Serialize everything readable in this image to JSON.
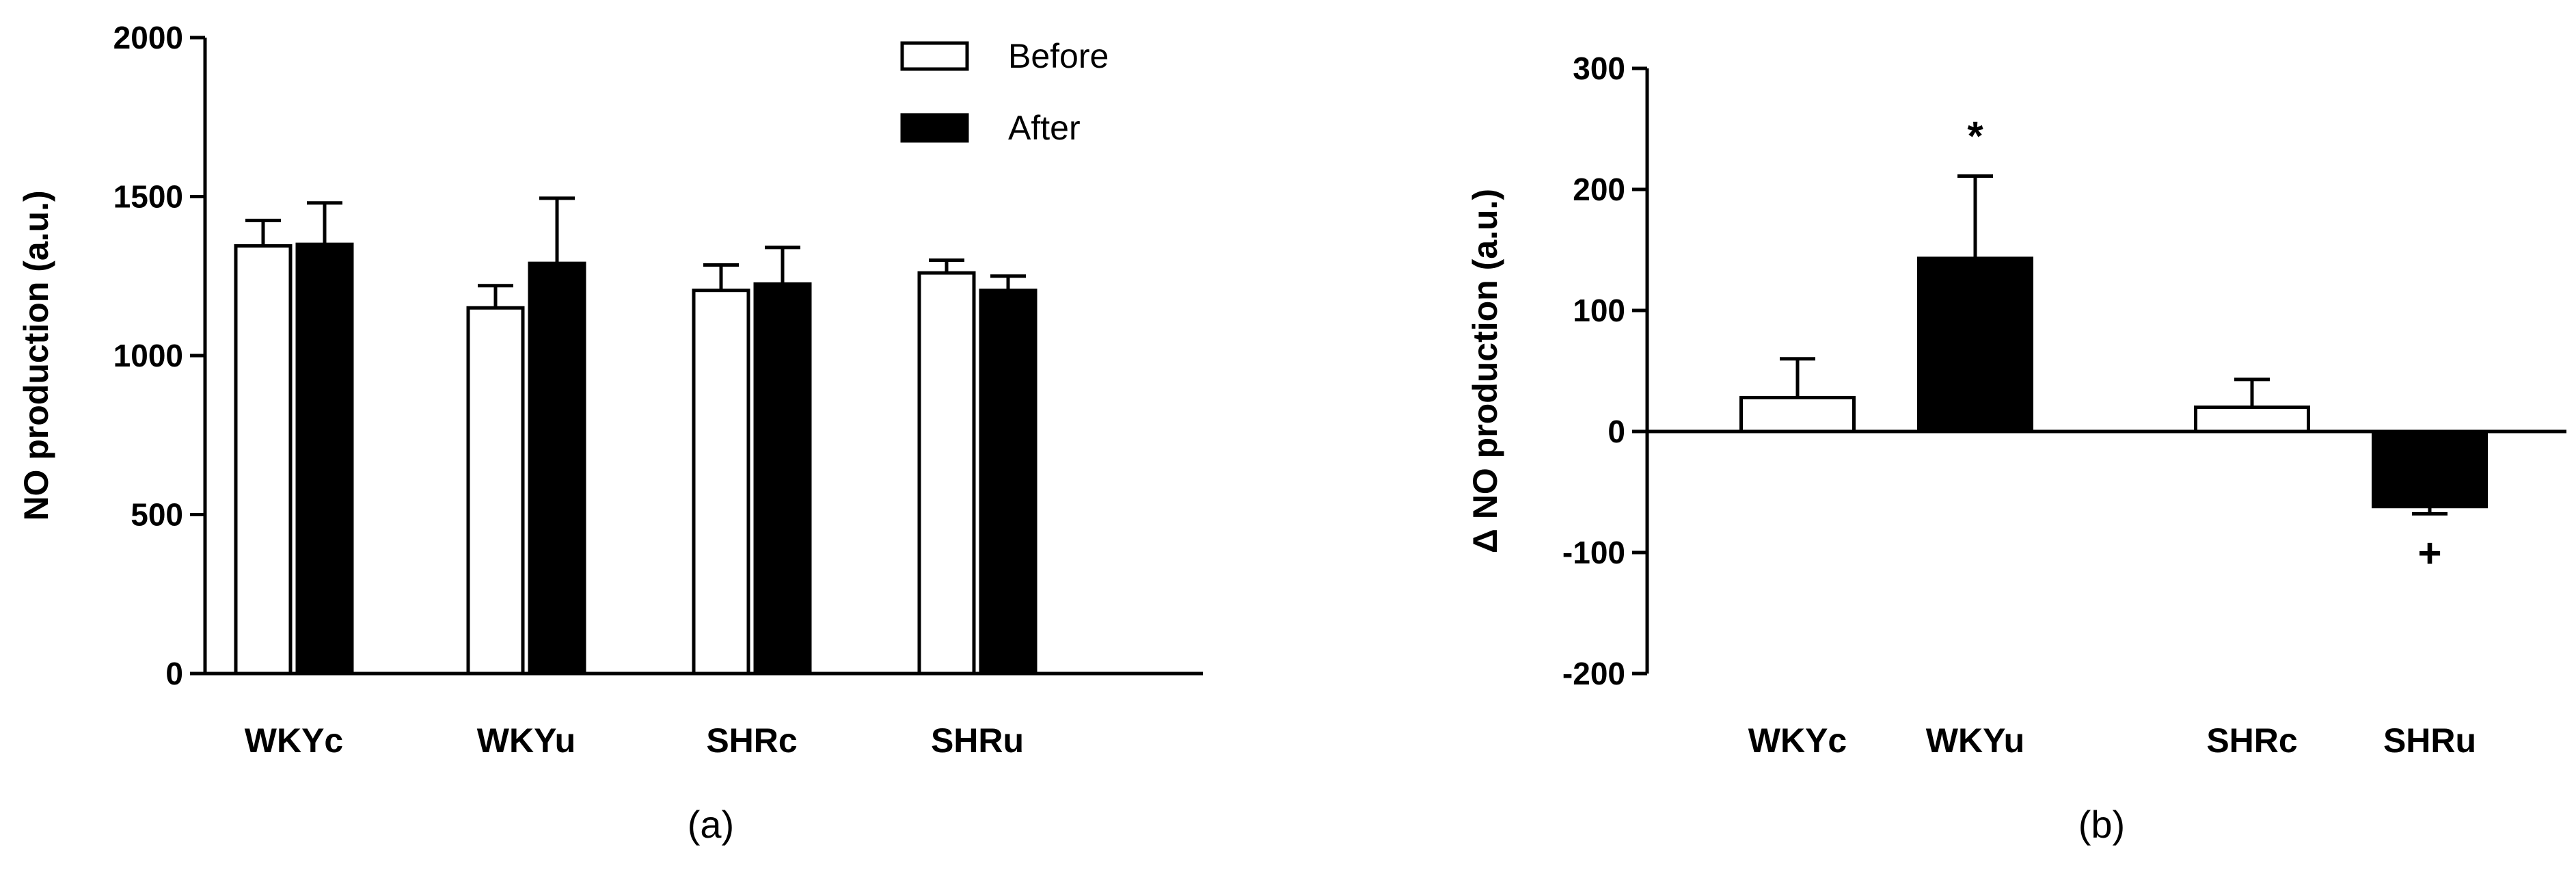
{
  "chart_data": [
    {
      "type": "bar",
      "panel_label": "(a)",
      "ylabel": "NO production (a.u.)",
      "ylim": [
        0,
        2000
      ],
      "yticks": [
        0,
        500,
        1000,
        1500,
        2000
      ],
      "categories": [
        "WKYc",
        "WKYu",
        "SHRc",
        "SHRu"
      ],
      "series": [
        {
          "name": "Before",
          "color": "#ffffff",
          "values": [
            1345,
            1150,
            1205,
            1260
          ],
          "errors": [
            80,
            70,
            80,
            40
          ]
        },
        {
          "name": "After",
          "color": "#000000",
          "values": [
            1350,
            1290,
            1225,
            1205
          ],
          "errors": [
            130,
            205,
            115,
            45
          ]
        }
      ],
      "legend": "top-right",
      "grid": false
    },
    {
      "type": "bar",
      "panel_label": "(b)",
      "ylabel": "Δ NO production (a.u.)",
      "ylim": [
        -200,
        300
      ],
      "yticks": [
        -200,
        -100,
        0,
        100,
        200,
        300
      ],
      "categories": [
        "WKYc",
        "WKYu",
        "SHRc",
        "SHRu"
      ],
      "values": [
        28,
        143,
        20,
        -62
      ],
      "errors": [
        32,
        68,
        23,
        6
      ],
      "colors": [
        "#ffffff",
        "#000000",
        "#ffffff",
        "#000000"
      ],
      "annotations": [
        {
          "category": "WKYu",
          "text": "*",
          "position": "above"
        },
        {
          "category": "SHRu",
          "text": "+",
          "position": "below"
        }
      ],
      "grid": false
    }
  ]
}
